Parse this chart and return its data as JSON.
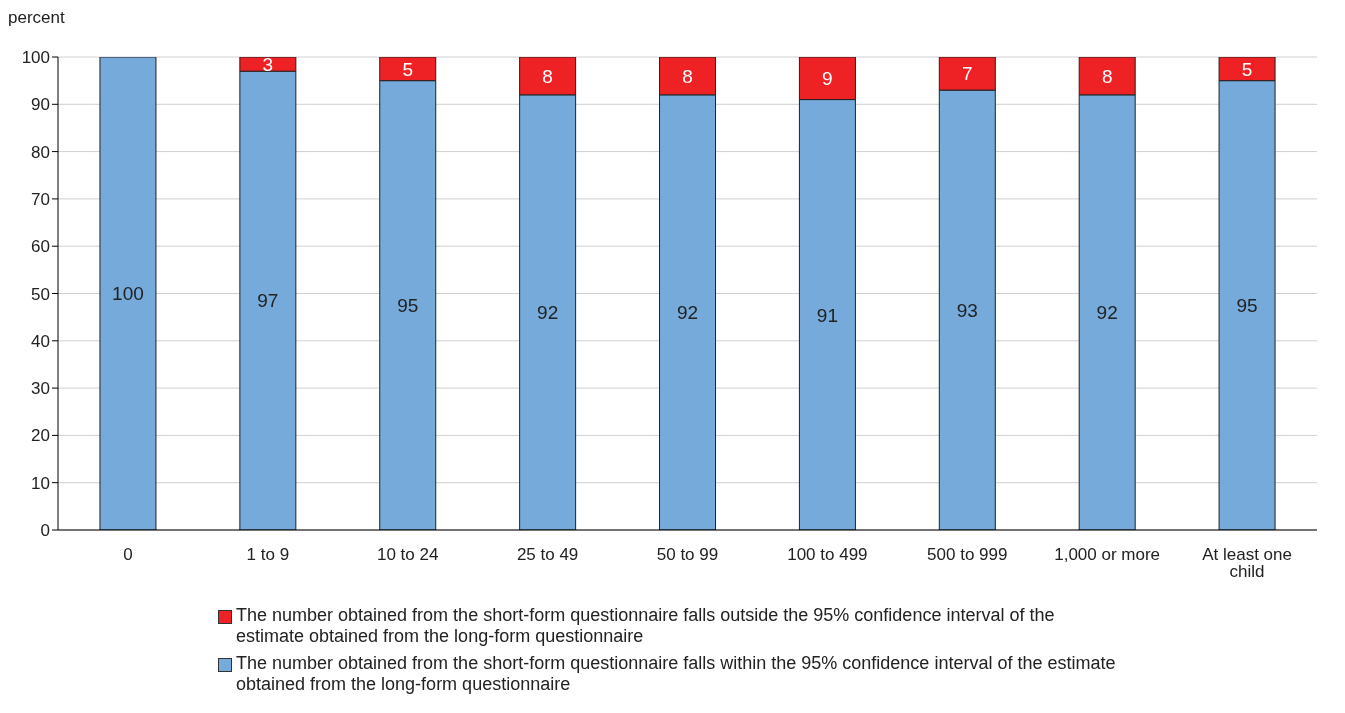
{
  "chart_data": {
    "type": "bar",
    "stacked": true,
    "ylabel": "percent",
    "categories": [
      "0",
      "1 to 9",
      "10 to 24",
      "25 to 49",
      "50 to 99",
      "100 to 499",
      "500 to 999",
      "1,000 or more",
      "At least one child"
    ],
    "series": [
      {
        "name": "The number obtained from the short-form questionnaire falls within the 95% confidence interval of the estimate obtained from the long-form questionnaire",
        "color": "#75aadb",
        "values": [
          100,
          97,
          95,
          92,
          92,
          91,
          93,
          92,
          95
        ]
      },
      {
        "name": "The number obtained from the short-form questionnaire falls outside the 95% confidence interval of the estimate obtained from the long-form questionnaire",
        "color": "#ee2224",
        "values": [
          null,
          3,
          5,
          8,
          8,
          9,
          7,
          8,
          5
        ]
      }
    ],
    "ylim": [
      0,
      100
    ],
    "yticks": [
      0,
      10,
      20,
      30,
      40,
      50,
      60,
      70,
      80,
      90,
      100
    ],
    "grid": "y",
    "legend": "bottom",
    "data_labels": true
  }
}
